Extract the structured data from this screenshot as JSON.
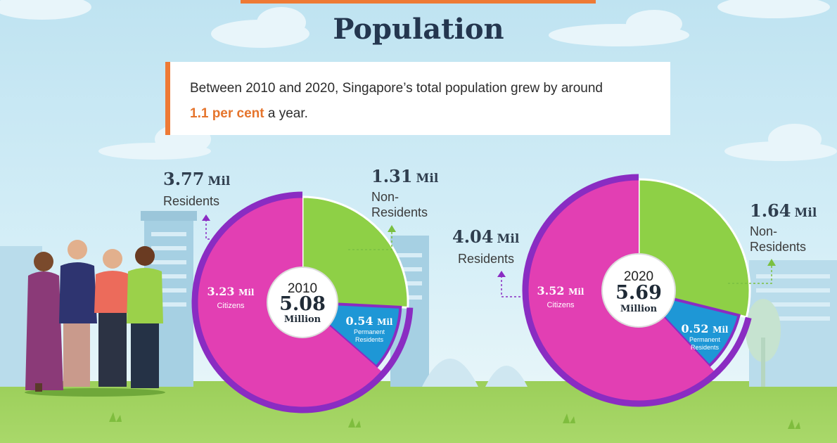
{
  "title": "Population",
  "intro": {
    "text_before": "Between 2010 and 2020, Singapore’s total population grew by around",
    "highlight": "1.1 per cent",
    "text_after": " a year."
  },
  "colors": {
    "citizens": "#e23fb3",
    "permanent_residents": "#1e97d6",
    "non_residents": "#8ed046",
    "residents_ring": "#8a2cc2",
    "accent": "#ee7a35"
  },
  "chart_data": [
    {
      "type": "pie",
      "year": "2010",
      "total_value": "5.08",
      "total_unit": "Million",
      "slices": [
        {
          "name": "Citizens",
          "value": 3.23,
          "value_text": "3.23",
          "unit": "Mil"
        },
        {
          "name": "Permanent Residents",
          "value": 0.54,
          "value_text": "0.54",
          "unit": "Mil"
        },
        {
          "name": "Non-Residents",
          "value": 1.31,
          "value_text": "1.31",
          "unit": "Mil"
        }
      ],
      "residents": {
        "value": 3.77,
        "value_text": "3.77",
        "unit": "Mil",
        "label": "Residents"
      },
      "non_residents_label": "Non-\nResidents"
    },
    {
      "type": "pie",
      "year": "2020",
      "total_value": "5.69",
      "total_unit": "Million",
      "slices": [
        {
          "name": "Citizens",
          "value": 3.52,
          "value_text": "3.52",
          "unit": "Mil"
        },
        {
          "name": "Permanent Residents",
          "value": 0.52,
          "value_text": "0.52",
          "unit": "Mil"
        },
        {
          "name": "Non-Residents",
          "value": 1.64,
          "value_text": "1.64",
          "unit": "Mil"
        }
      ],
      "residents": {
        "value": 4.04,
        "value_text": "4.04",
        "unit": "Mil",
        "label": "Residents"
      },
      "non_residents_label": "Non-\nResidents"
    }
  ]
}
